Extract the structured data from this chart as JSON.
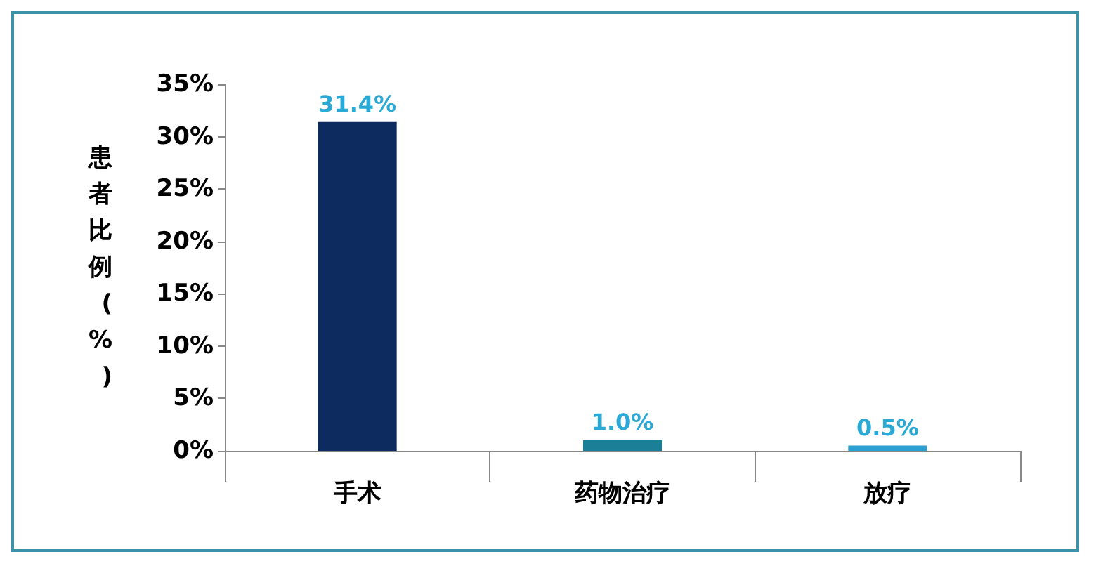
{
  "chart_data": {
    "type": "bar",
    "ylabel": "患者比例(%)",
    "categories": [
      "手术",
      "药物治疗",
      "放疗"
    ],
    "values": [
      31.4,
      1.0,
      0.5
    ],
    "colors": [
      "#0d2b5e",
      "#1b7f97",
      "#2b9fd0"
    ],
    "value_labels": [
      "31.4%",
      "1.0%",
      "0.5%"
    ],
    "ylim": [
      0,
      35
    ],
    "yticks": [
      {
        "value": 0,
        "label": "0%"
      },
      {
        "value": 5,
        "label": "5%"
      },
      {
        "value": 10,
        "label": "10%"
      },
      {
        "value": 15,
        "label": "15%"
      },
      {
        "value": 20,
        "label": "20%"
      },
      {
        "value": 25,
        "label": "25%"
      },
      {
        "value": 30,
        "label": "30%"
      },
      {
        "value": 35,
        "label": "35%"
      }
    ],
    "grid": false
  }
}
